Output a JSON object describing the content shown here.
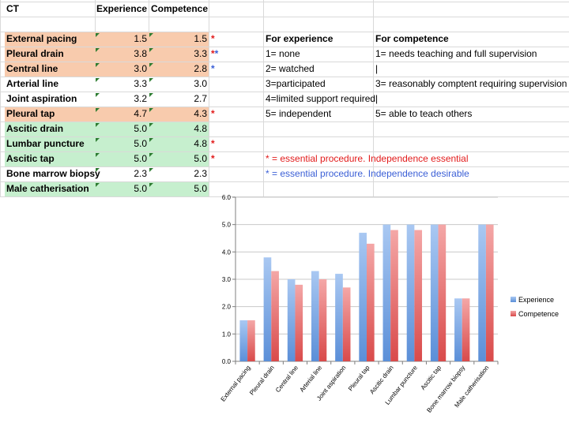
{
  "table": {
    "headers": [
      "CT",
      "Experience",
      "Competence"
    ],
    "rows": [
      {
        "name": "External pacing",
        "experience": "1.5",
        "competence": "1.5",
        "star": "*",
        "star_color": "#e21b1b",
        "fill": "#f8cbad"
      },
      {
        "name": "Pleural drain",
        "experience": "3.8",
        "competence": "3.3",
        "star": "**",
        "star_color": "#e21b1b",
        "star2_color": "#3b5fd6",
        "fill": "#f8cbad"
      },
      {
        "name": "Central line",
        "experience": "3.0",
        "competence": "2.8",
        "star": "*",
        "star_color": "#3b5fd6",
        "fill": "#f8cbad"
      },
      {
        "name": "Arterial line",
        "experience": "3.3",
        "competence": "3.0",
        "star": "",
        "star_color": "",
        "fill": "#ffffff"
      },
      {
        "name": "Joint aspiration",
        "experience": "3.2",
        "competence": "2.7",
        "star": "",
        "star_color": "",
        "fill": "#ffffff"
      },
      {
        "name": "Pleural tap",
        "experience": "4.7",
        "competence": "4.3",
        "star": "*",
        "star_color": "#e21b1b",
        "fill": "#f8cbad"
      },
      {
        "name": "Ascitic drain",
        "experience": "5.0",
        "competence": "4.8",
        "star": "",
        "star_color": "",
        "fill": "#c6efce"
      },
      {
        "name": "Lumbar puncture",
        "experience": "5.0",
        "competence": "4.8",
        "star": "*",
        "star_color": "#e21b1b",
        "fill": "#c6efce"
      },
      {
        "name": "Ascitic tap",
        "experience": "5.0",
        "competence": "5.0",
        "star": "*",
        "star_color": "#e21b1b",
        "fill": "#c6efce"
      },
      {
        "name": "Bone marrow biopsy",
        "experience": "2.3",
        "competence": "2.3",
        "star": "",
        "star_color": "",
        "fill": "#ffffff"
      },
      {
        "name": "Male catherisation",
        "experience": "5.0",
        "competence": "5.0",
        "star": "",
        "star_color": "",
        "fill": "#c6efce"
      }
    ]
  },
  "key": {
    "experience_header": "For experience",
    "competence_header": "For competence",
    "experience_items": [
      "1= none",
      "2= watched",
      "3=participated",
      "4=limited support required",
      "5= independent"
    ],
    "competence_items": [
      "1= needs teaching and full supervision",
      "|",
      "3= reasonably comptent requiring supervision",
      "|",
      "5= able to teach others"
    ]
  },
  "notes": {
    "essential": "* = essential procedure. Independence essential",
    "desirable": "* = essential procedure. Independence desirable",
    "essential_color": "#e21b1b",
    "desirable_color": "#3b5fd6"
  },
  "chart_data": {
    "type": "bar",
    "categories": [
      "External pacing",
      "Pleural drain",
      "Central line",
      "Arterial line",
      "Joint aspiration",
      "Pleural tap",
      "Ascitic drain",
      "Lumbar puncture",
      "Ascitic tap",
      "Bone marrow biopsy",
      "Male catherisation"
    ],
    "series": [
      {
        "name": "Experience",
        "values": [
          1.5,
          3.8,
          3.0,
          3.3,
          3.2,
          4.7,
          5.0,
          5.0,
          5.0,
          2.3,
          5.0
        ],
        "color": "#8db3e8"
      },
      {
        "name": "Competence",
        "values": [
          1.5,
          3.3,
          2.8,
          3.0,
          2.7,
          4.3,
          4.8,
          4.8,
          5.0,
          2.3,
          5.0
        ],
        "color": "#e8898a"
      }
    ],
    "ylim": [
      0,
      6
    ],
    "yticks": [
      "0.0",
      "1.0",
      "2.0",
      "3.0",
      "4.0",
      "5.0",
      "6.0"
    ],
    "grid": true,
    "legend": "right"
  }
}
